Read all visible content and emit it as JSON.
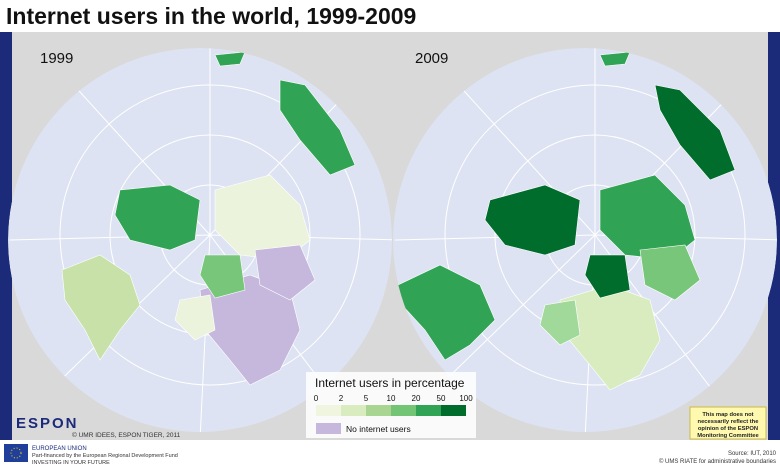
{
  "title": "Internet users in the world, 1999-2009",
  "maps": [
    {
      "year": "1999"
    },
    {
      "year": "2009"
    }
  ],
  "legend": {
    "title": "Internet users in percentage",
    "breaks": [
      0,
      2,
      5,
      10,
      20,
      50,
      100
    ],
    "no_data": "No internet users"
  },
  "credits": {
    "logo": "ESPON",
    "author": "© UMR IDEES, ESPON TIGER, 2011",
    "source": "Source: IUT, 2010",
    "boundaries": "© UMS RIATE for administrative boundaries"
  },
  "footer": {
    "eu": "EUROPEAN UNION",
    "fund": "Part-financed by the European Regional Development Fund",
    "motto": "INVESTING IN YOUR FUTURE"
  },
  "note": [
    "This map does not",
    "necessarily reflect the",
    "opinion of the ESPON",
    "Monitoring Committee"
  ]
}
